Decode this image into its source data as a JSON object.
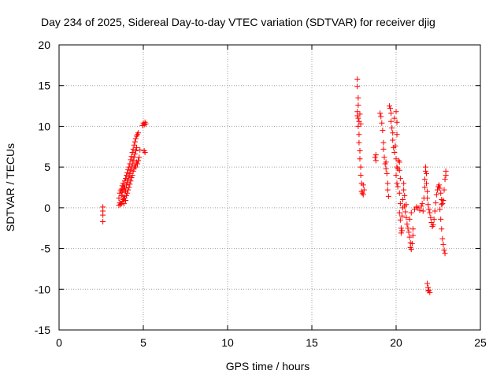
{
  "chart_data": {
    "type": "scatter",
    "title": "Day 234 of 2025, Sidereal Day-to-day VTEC variation (SDTVAR) for receiver djig",
    "xlabel": "GPS time / hours",
    "ylabel": "SDTVAR / TECUs",
    "xlim": [
      0,
      25
    ],
    "ylim": [
      -15,
      20
    ],
    "xticks": [
      0,
      5,
      10,
      15,
      20,
      25
    ],
    "yticks": [
      -15,
      -10,
      -5,
      0,
      5,
      10,
      15,
      20
    ],
    "grid": true,
    "marker": "+",
    "color": "#ff0000",
    "series": [
      {
        "name": "SDTVAR",
        "points": [
          [
            2.6,
            0.1
          ],
          [
            2.6,
            -0.4
          ],
          [
            2.6,
            -0.9
          ],
          [
            2.6,
            -1.7
          ],
          [
            3.55,
            0.3
          ],
          [
            3.55,
            1.2
          ],
          [
            3.6,
            0.6
          ],
          [
            3.6,
            1.8
          ],
          [
            3.65,
            0.4
          ],
          [
            3.65,
            2.1
          ],
          [
            3.7,
            0.5
          ],
          [
            3.7,
            1.5
          ],
          [
            3.7,
            2.3
          ],
          [
            3.75,
            0.8
          ],
          [
            3.75,
            1.9
          ],
          [
            3.75,
            2.7
          ],
          [
            3.8,
            1.0
          ],
          [
            3.8,
            2.2
          ],
          [
            3.8,
            3.0
          ],
          [
            3.85,
            0.5
          ],
          [
            3.85,
            1.4
          ],
          [
            3.85,
            2.6
          ],
          [
            3.9,
            1.2
          ],
          [
            3.9,
            2.4
          ],
          [
            3.9,
            3.3
          ],
          [
            3.95,
            0.9
          ],
          [
            3.95,
            2.0
          ],
          [
            3.95,
            3.6
          ],
          [
            4.0,
            1.5
          ],
          [
            4.0,
            2.8
          ],
          [
            4.0,
            4.0
          ],
          [
            4.05,
            1.8
          ],
          [
            4.05,
            3.1
          ],
          [
            4.05,
            4.3
          ],
          [
            4.1,
            2.2
          ],
          [
            4.1,
            3.5
          ],
          [
            4.1,
            4.7
          ],
          [
            4.15,
            2.5
          ],
          [
            4.15,
            3.8
          ],
          [
            4.15,
            5.0
          ],
          [
            4.2,
            2.9
          ],
          [
            4.2,
            4.2
          ],
          [
            4.2,
            5.4
          ],
          [
            4.25,
            3.3
          ],
          [
            4.25,
            4.6
          ],
          [
            4.25,
            5.9
          ],
          [
            4.3,
            3.7
          ],
          [
            4.3,
            5.0
          ],
          [
            4.3,
            6.3
          ],
          [
            4.35,
            4.0
          ],
          [
            4.35,
            5.4
          ],
          [
            4.35,
            6.8
          ],
          [
            4.4,
            4.5
          ],
          [
            4.4,
            5.8
          ],
          [
            4.4,
            7.2
          ],
          [
            4.45,
            4.8
          ],
          [
            4.45,
            6.2
          ],
          [
            4.45,
            7.7
          ],
          [
            4.5,
            5.2
          ],
          [
            4.5,
            6.6
          ],
          [
            4.5,
            8.1
          ],
          [
            4.55,
            5.0
          ],
          [
            4.55,
            7.0
          ],
          [
            4.55,
            8.5
          ],
          [
            4.6,
            5.6
          ],
          [
            4.6,
            7.4
          ],
          [
            4.6,
            8.8
          ],
          [
            4.65,
            5.4
          ],
          [
            4.65,
            9.0
          ],
          [
            4.7,
            5.8
          ],
          [
            4.7,
            9.2
          ],
          [
            4.75,
            6.2
          ],
          [
            4.8,
            7.1
          ],
          [
            4.95,
            10.1
          ],
          [
            5.0,
            10.4
          ],
          [
            5.05,
            10.2
          ],
          [
            5.1,
            10.5
          ],
          [
            5.15,
            10.3
          ],
          [
            5.05,
            7.0
          ],
          [
            5.1,
            6.8
          ],
          [
            17.7,
            15.8
          ],
          [
            17.7,
            14.9
          ],
          [
            17.75,
            13.5
          ],
          [
            17.75,
            12.6
          ],
          [
            17.7,
            11.8
          ],
          [
            17.7,
            11.3
          ],
          [
            17.75,
            11.0
          ],
          [
            17.8,
            10.6
          ],
          [
            17.75,
            10.0
          ],
          [
            17.8,
            9.0
          ],
          [
            17.8,
            8.0
          ],
          [
            17.85,
            7.0
          ],
          [
            17.85,
            6.0
          ],
          [
            17.9,
            5.0
          ],
          [
            17.9,
            4.0
          ],
          [
            17.95,
            3.0
          ],
          [
            17.95,
            2.0
          ],
          [
            18.0,
            1.8
          ],
          [
            18.05,
            1.6
          ],
          [
            18.1,
            2.2
          ],
          [
            18.05,
            2.8
          ],
          [
            17.85,
            11.5
          ],
          [
            17.9,
            10.3
          ],
          [
            18.75,
            6.2
          ],
          [
            18.8,
            5.8
          ],
          [
            18.8,
            6.5
          ],
          [
            19.05,
            11.6
          ],
          [
            19.1,
            11.2
          ],
          [
            19.15,
            10.4
          ],
          [
            19.2,
            9.5
          ],
          [
            19.25,
            8.0
          ],
          [
            19.25,
            7.2
          ],
          [
            19.3,
            6.2
          ],
          [
            19.35,
            5.4
          ],
          [
            19.4,
            4.8
          ],
          [
            19.45,
            4.2
          ],
          [
            19.4,
            5.6
          ],
          [
            19.5,
            3.0
          ],
          [
            19.5,
            2.2
          ],
          [
            19.55,
            1.4
          ],
          [
            19.6,
            12.5
          ],
          [
            19.65,
            12.2
          ],
          [
            19.7,
            11.6
          ],
          [
            19.7,
            10.6
          ],
          [
            19.75,
            9.8
          ],
          [
            19.8,
            9.2
          ],
          [
            19.8,
            8.3
          ],
          [
            19.85,
            7.4
          ],
          [
            19.9,
            6.8
          ],
          [
            19.95,
            7.6
          ],
          [
            19.9,
            11.0
          ],
          [
            20.0,
            11.8
          ],
          [
            20.05,
            10.5
          ],
          [
            20.05,
            9.0
          ],
          [
            20.0,
            6.0
          ],
          [
            20.05,
            5.0
          ],
          [
            20.0,
            4.0
          ],
          [
            20.05,
            3.0
          ],
          [
            20.1,
            2.6
          ],
          [
            20.1,
            4.8
          ],
          [
            20.15,
            5.8
          ],
          [
            20.2,
            5.6
          ],
          [
            20.2,
            4.6
          ],
          [
            20.25,
            3.6
          ],
          [
            20.2,
            1.8
          ],
          [
            20.25,
            0.5
          ],
          [
            20.2,
            -0.6
          ],
          [
            20.25,
            -1.5
          ],
          [
            20.3,
            -2.5
          ],
          [
            20.3,
            -3.1
          ],
          [
            20.35,
            -2.8
          ],
          [
            20.35,
            -1.0
          ],
          [
            20.4,
            0.0
          ],
          [
            20.4,
            1.0
          ],
          [
            20.45,
            2.2
          ],
          [
            20.45,
            3.0
          ],
          [
            20.5,
            1.5
          ],
          [
            20.5,
            0.2
          ],
          [
            20.55,
            -0.5
          ],
          [
            20.6,
            0.4
          ],
          [
            20.6,
            -1.2
          ],
          [
            20.65,
            -2.0
          ],
          [
            20.7,
            -2.5
          ],
          [
            20.75,
            -3.0
          ],
          [
            20.8,
            -3.6
          ],
          [
            20.85,
            -4.3
          ],
          [
            20.85,
            -4.9
          ],
          [
            20.9,
            -5.1
          ],
          [
            20.95,
            -4.4
          ],
          [
            21.0,
            -3.4
          ],
          [
            21.0,
            -2.6
          ],
          [
            20.8,
            -1.4
          ],
          [
            20.9,
            -0.6
          ],
          [
            21.1,
            -0.2
          ],
          [
            21.2,
            0.1
          ],
          [
            21.3,
            0.0
          ],
          [
            21.4,
            -0.3
          ],
          [
            21.5,
            0.2
          ],
          [
            21.55,
            0.5
          ],
          [
            21.6,
            -0.4
          ],
          [
            21.65,
            1.2
          ],
          [
            21.7,
            2.5
          ],
          [
            21.7,
            3.5
          ],
          [
            21.75,
            4.5
          ],
          [
            21.75,
            5.0
          ],
          [
            21.8,
            4.2
          ],
          [
            21.8,
            3.0
          ],
          [
            21.85,
            2.0
          ],
          [
            21.85,
            1.2
          ],
          [
            21.9,
            0.4
          ],
          [
            21.95,
            -0.2
          ],
          [
            22.0,
            -0.6
          ],
          [
            22.05,
            -1.2
          ],
          [
            22.1,
            -1.8
          ],
          [
            22.15,
            -2.3
          ],
          [
            22.2,
            -2.1
          ],
          [
            22.25,
            -1.4
          ],
          [
            22.3,
            -0.4
          ],
          [
            22.35,
            0.6
          ],
          [
            22.4,
            1.6
          ],
          [
            22.45,
            2.2
          ],
          [
            22.5,
            2.6
          ],
          [
            22.55,
            2.8
          ],
          [
            22.6,
            2.4
          ],
          [
            22.65,
            1.8
          ],
          [
            22.7,
            1.0
          ],
          [
            22.75,
            0.5
          ],
          [
            22.8,
            0.9
          ],
          [
            22.85,
            2.2
          ],
          [
            22.9,
            3.5
          ],
          [
            22.95,
            4.5
          ],
          [
            22.95,
            4.0
          ],
          [
            22.7,
            0.4
          ],
          [
            22.6,
            -0.2
          ],
          [
            22.65,
            -1.4
          ],
          [
            22.7,
            -2.6
          ],
          [
            22.75,
            -3.8
          ],
          [
            22.8,
            -4.5
          ],
          [
            22.85,
            -5.2
          ],
          [
            22.9,
            -5.6
          ],
          [
            21.85,
            -9.3
          ],
          [
            21.9,
            -9.8
          ],
          [
            21.95,
            -10.1
          ],
          [
            22.0,
            -10.4
          ],
          [
            21.9,
            -10.2
          ]
        ]
      }
    ]
  }
}
